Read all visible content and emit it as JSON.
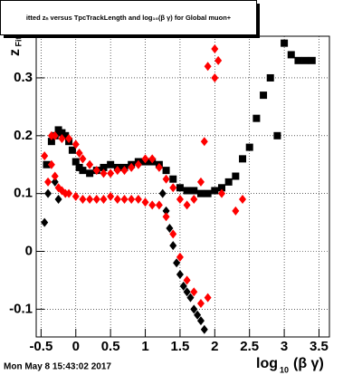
{
  "chart_data": {
    "type": "scatter",
    "title": "itted  zₙ versus TpcTrackLength and log₁₀(β γ) for Global muon+",
    "ylabel": "z",
    "ylabel_sub": "Fit",
    "xlabel": "log",
    "xlabel_sub": "10",
    "xlabel_tail": "(β γ)",
    "footer": "Mon May  8 15:43:02 2017",
    "xlim": [
      -0.57,
      3.65
    ],
    "ylim": [
      -0.148,
      0.372
    ],
    "xticks": [
      -0.5,
      0,
      0.5,
      1,
      1.5,
      2,
      2.5,
      3,
      3.5
    ],
    "yticks": [
      -0.1,
      0,
      0.1,
      0.2,
      0.3
    ],
    "grid": true,
    "series": [
      {
        "color": "#000000",
        "marker": "square",
        "x": [
          -0.42,
          -0.35,
          -0.3,
          -0.25,
          -0.2,
          -0.15,
          -0.1,
          -0.05,
          0,
          0.05,
          0.1,
          0.2,
          0.3,
          0.4,
          0.5,
          0.6,
          0.7,
          0.8,
          0.9,
          1.0,
          1.1,
          1.2,
          1.3,
          1.4,
          1.5,
          1.6,
          1.7,
          1.8,
          1.9,
          2.0,
          2.1,
          2.2,
          2.3,
          2.4,
          2.5,
          2.6,
          2.7,
          2.8,
          2.9,
          3.0,
          3.1,
          3.2,
          3.3,
          3.4
        ],
        "values": [
          0.15,
          0.19,
          0.2,
          0.21,
          0.205,
          0.2,
          0.19,
          0.175,
          0.155,
          0.145,
          0.14,
          0.135,
          0.14,
          0.145,
          0.15,
          0.145,
          0.145,
          0.15,
          0.155,
          0.155,
          0.155,
          0.15,
          0.14,
          0.125,
          0.11,
          0.105,
          0.105,
          0.1,
          0.1,
          0.105,
          0.11,
          0.12,
          0.13,
          0.16,
          0.18,
          0.23,
          0.27,
          0.3,
          0.2,
          0.36,
          0.34,
          0.33,
          0.33,
          0.33
        ]
      },
      {
        "color": "#000000",
        "marker": "diamond",
        "x": [
          -0.45,
          -0.4,
          -0.3,
          -0.25,
          1.25,
          1.3,
          1.35,
          1.4,
          1.45,
          1.5,
          1.55,
          1.6,
          1.65,
          1.7,
          1.75,
          1.8,
          1.85
        ],
        "values": [
          0.05,
          0.1,
          0.12,
          0.09,
          0.1,
          0.07,
          0.04,
          0.01,
          -0.02,
          -0.04,
          -0.06,
          -0.07,
          -0.08,
          -0.1,
          -0.11,
          -0.12,
          -0.135
        ]
      },
      {
        "color": "#ff0000",
        "marker": "diamond",
        "x": [
          -0.45,
          -0.35,
          -0.3,
          -0.2,
          -0.1,
          0,
          0.05,
          0.1,
          0.2,
          0.3,
          0.4,
          0.5,
          0.6,
          0.7,
          0.8,
          0.9,
          1.0,
          1.1,
          1.2,
          1.3,
          1.4,
          1.5,
          1.6,
          1.7,
          1.8,
          1.85,
          1.9,
          2.0,
          2.05
        ],
        "values": [
          0.165,
          0.2,
          0.2,
          0.195,
          0.195,
          0.185,
          0.17,
          0.16,
          0.15,
          0.14,
          0.135,
          0.135,
          0.14,
          0.14,
          0.145,
          0.15,
          0.16,
          0.16,
          0.145,
          0.125,
          0.11,
          0.09,
          0.08,
          0.09,
          0.12,
          0.19,
          0.32,
          0.35,
          0.33
        ]
      },
      {
        "color": "#ff0000",
        "marker": "diamond",
        "x": [
          -0.4,
          -0.35,
          -0.3,
          -0.25,
          -0.2,
          -0.15,
          -0.1,
          0,
          0.1,
          0.2,
          0.3,
          0.4,
          0.5,
          0.6,
          0.7,
          0.8,
          0.9,
          1.0,
          1.1,
          1.2,
          1.3,
          1.4,
          1.5,
          1.6,
          1.7,
          1.8,
          1.9,
          2.0,
          2.1,
          2.3,
          2.4
        ],
        "values": [
          0.12,
          0.15,
          0.13,
          0.11,
          0.105,
          0.1,
          0.1,
          0.095,
          0.09,
          0.09,
          0.09,
          0.09,
          0.095,
          0.09,
          0.09,
          0.09,
          0.09,
          0.085,
          0.08,
          0.08,
          0.06,
          0.03,
          -0.01,
          -0.05,
          -0.07,
          -0.09,
          -0.08,
          0.3,
          0.1,
          0.07,
          0.09
        ]
      }
    ]
  }
}
